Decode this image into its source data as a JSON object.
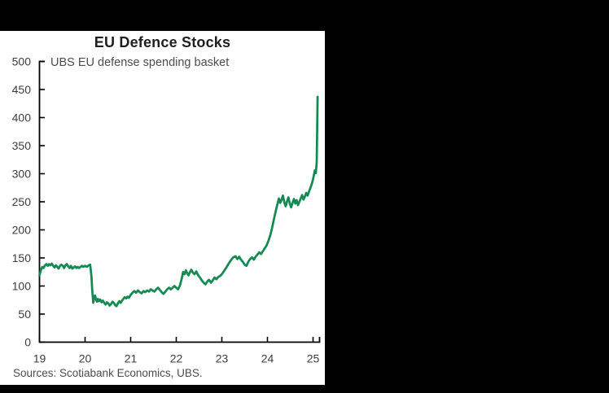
{
  "page": {
    "background_color": "#000000",
    "panel_background_color": "#ffffff"
  },
  "chart": {
    "title": "EU Defence Stocks",
    "subtitle": "UBS EU defense spending basket",
    "source": "Sources: Scotiabank Economics, UBS.",
    "colors": {
      "line": "#148a52",
      "axis": "#000000",
      "title_text": "#1f1f1f",
      "tick_label_text": "#3d3d3d",
      "muted_text": "#4d4d4d"
    }
  },
  "chart_data": {
    "type": "line",
    "title": "EU Defence Stocks",
    "subtitle": "UBS EU defense spending basket",
    "source": "Sources: Scotiabank Economics, UBS.",
    "xlabel": "",
    "ylabel": "",
    "xlim": [
      19,
      25.2
    ],
    "ylim": [
      0,
      500
    ],
    "grid": false,
    "legend_position": "none",
    "y_ticks": [
      0,
      50,
      100,
      150,
      200,
      250,
      300,
      350,
      400,
      450,
      500
    ],
    "x_ticks": [
      19,
      20,
      21,
      22,
      23,
      24,
      25
    ],
    "x_tick_labels": [
      "19",
      "20",
      "21",
      "22",
      "23",
      "24",
      "25"
    ],
    "series": [
      {
        "name": "UBS EU defense spending basket",
        "points": [
          [
            19.0,
            119
          ],
          [
            19.03,
            128
          ],
          [
            19.06,
            134
          ],
          [
            19.09,
            132
          ],
          [
            19.12,
            137
          ],
          [
            19.15,
            139
          ],
          [
            19.18,
            136
          ],
          [
            19.21,
            139
          ],
          [
            19.24,
            137
          ],
          [
            19.27,
            140
          ],
          [
            19.3,
            136
          ],
          [
            19.33,
            133
          ],
          [
            19.36,
            137
          ],
          [
            19.39,
            134
          ],
          [
            19.42,
            131
          ],
          [
            19.45,
            136
          ],
          [
            19.48,
            138
          ],
          [
            19.51,
            136
          ],
          [
            19.54,
            132
          ],
          [
            19.57,
            137
          ],
          [
            19.6,
            139
          ],
          [
            19.63,
            135
          ],
          [
            19.66,
            132
          ],
          [
            19.69,
            136
          ],
          [
            19.72,
            131
          ],
          [
            19.75,
            133
          ],
          [
            19.78,
            135
          ],
          [
            19.81,
            132
          ],
          [
            19.84,
            134
          ],
          [
            19.87,
            132
          ],
          [
            19.9,
            134
          ],
          [
            19.93,
            136
          ],
          [
            19.96,
            134
          ],
          [
            20.0,
            136
          ],
          [
            20.04,
            134
          ],
          [
            20.08,
            137
          ],
          [
            20.11,
            138
          ],
          [
            20.14,
            118
          ],
          [
            20.16,
            88
          ],
          [
            20.18,
            70
          ],
          [
            20.2,
            80
          ],
          [
            20.22,
            83
          ],
          [
            20.24,
            76
          ],
          [
            20.26,
            72
          ],
          [
            20.28,
            77
          ],
          [
            20.3,
            73
          ],
          [
            20.33,
            76
          ],
          [
            20.36,
            71
          ],
          [
            20.39,
            74
          ],
          [
            20.42,
            70
          ],
          [
            20.45,
            67
          ],
          [
            20.48,
            71
          ],
          [
            20.51,
            69
          ],
          [
            20.54,
            65
          ],
          [
            20.57,
            68
          ],
          [
            20.6,
            72
          ],
          [
            20.63,
            70
          ],
          [
            20.66,
            66
          ],
          [
            20.69,
            64
          ],
          [
            20.72,
            69
          ],
          [
            20.75,
            73
          ],
          [
            20.78,
            70
          ],
          [
            20.81,
            74
          ],
          [
            20.84,
            77
          ],
          [
            20.87,
            80
          ],
          [
            20.9,
            78
          ],
          [
            20.93,
            81
          ],
          [
            20.96,
            79
          ],
          [
            21.0,
            84
          ],
          [
            21.04,
            88
          ],
          [
            21.08,
            91
          ],
          [
            21.12,
            88
          ],
          [
            21.16,
            92
          ],
          [
            21.2,
            89
          ],
          [
            21.24,
            87
          ],
          [
            21.28,
            91
          ],
          [
            21.32,
            89
          ],
          [
            21.36,
            92
          ],
          [
            21.4,
            90
          ],
          [
            21.44,
            94
          ],
          [
            21.48,
            92
          ],
          [
            21.52,
            90
          ],
          [
            21.56,
            94
          ],
          [
            21.6,
            97
          ],
          [
            21.64,
            93
          ],
          [
            21.68,
            89
          ],
          [
            21.72,
            86
          ],
          [
            21.76,
            90
          ],
          [
            21.8,
            94
          ],
          [
            21.84,
            97
          ],
          [
            21.88,
            94
          ],
          [
            21.92,
            97
          ],
          [
            21.96,
            100
          ],
          [
            22.0,
            97
          ],
          [
            22.04,
            94
          ],
          [
            22.08,
            101
          ],
          [
            22.12,
            113
          ],
          [
            22.15,
            125
          ],
          [
            22.18,
            121
          ],
          [
            22.21,
            128
          ],
          [
            22.24,
            123
          ],
          [
            22.27,
            119
          ],
          [
            22.3,
            125
          ],
          [
            22.33,
            129
          ],
          [
            22.36,
            124
          ],
          [
            22.4,
            121
          ],
          [
            22.44,
            126
          ],
          [
            22.48,
            119
          ],
          [
            22.52,
            115
          ],
          [
            22.56,
            110
          ],
          [
            22.6,
            106
          ],
          [
            22.64,
            103
          ],
          [
            22.68,
            108
          ],
          [
            22.72,
            111
          ],
          [
            22.76,
            106
          ],
          [
            22.8,
            110
          ],
          [
            22.84,
            115
          ],
          [
            22.88,
            112
          ],
          [
            22.92,
            116
          ],
          [
            22.96,
            118
          ],
          [
            23.0,
            121
          ],
          [
            23.05,
            127
          ],
          [
            23.1,
            133
          ],
          [
            23.15,
            140
          ],
          [
            23.2,
            146
          ],
          [
            23.25,
            151
          ],
          [
            23.3,
            153
          ],
          [
            23.34,
            148
          ],
          [
            23.38,
            152
          ],
          [
            23.42,
            147
          ],
          [
            23.46,
            143
          ],
          [
            23.5,
            138
          ],
          [
            23.54,
            136
          ],
          [
            23.58,
            143
          ],
          [
            23.62,
            148
          ],
          [
            23.66,
            151
          ],
          [
            23.7,
            147
          ],
          [
            23.74,
            152
          ],
          [
            23.78,
            156
          ],
          [
            23.82,
            160
          ],
          [
            23.86,
            157
          ],
          [
            23.9,
            162
          ],
          [
            23.94,
            167
          ],
          [
            23.98,
            172
          ],
          [
            24.02,
            180
          ],
          [
            24.06,
            190
          ],
          [
            24.1,
            203
          ],
          [
            24.14,
            218
          ],
          [
            24.18,
            233
          ],
          [
            24.22,
            246
          ],
          [
            24.25,
            256
          ],
          [
            24.28,
            248
          ],
          [
            24.31,
            254
          ],
          [
            24.34,
            261
          ],
          [
            24.37,
            249
          ],
          [
            24.4,
            242
          ],
          [
            24.43,
            251
          ],
          [
            24.46,
            258
          ],
          [
            24.49,
            247
          ],
          [
            24.52,
            240
          ],
          [
            24.55,
            248
          ],
          [
            24.58,
            255
          ],
          [
            24.61,
            247
          ],
          [
            24.64,
            253
          ],
          [
            24.67,
            244
          ],
          [
            24.7,
            250
          ],
          [
            24.73,
            256
          ],
          [
            24.76,
            262
          ],
          [
            24.79,
            254
          ],
          [
            24.82,
            259
          ],
          [
            24.85,
            266
          ],
          [
            24.88,
            261
          ],
          [
            24.91,
            268
          ],
          [
            24.94,
            274
          ],
          [
            24.97,
            281
          ],
          [
            25.0,
            290
          ],
          [
            25.02,
            298
          ],
          [
            25.04,
            306
          ],
          [
            25.06,
            301
          ],
          [
            25.08,
            320
          ],
          [
            25.09,
            370
          ],
          [
            25.1,
            437
          ]
        ]
      }
    ]
  }
}
